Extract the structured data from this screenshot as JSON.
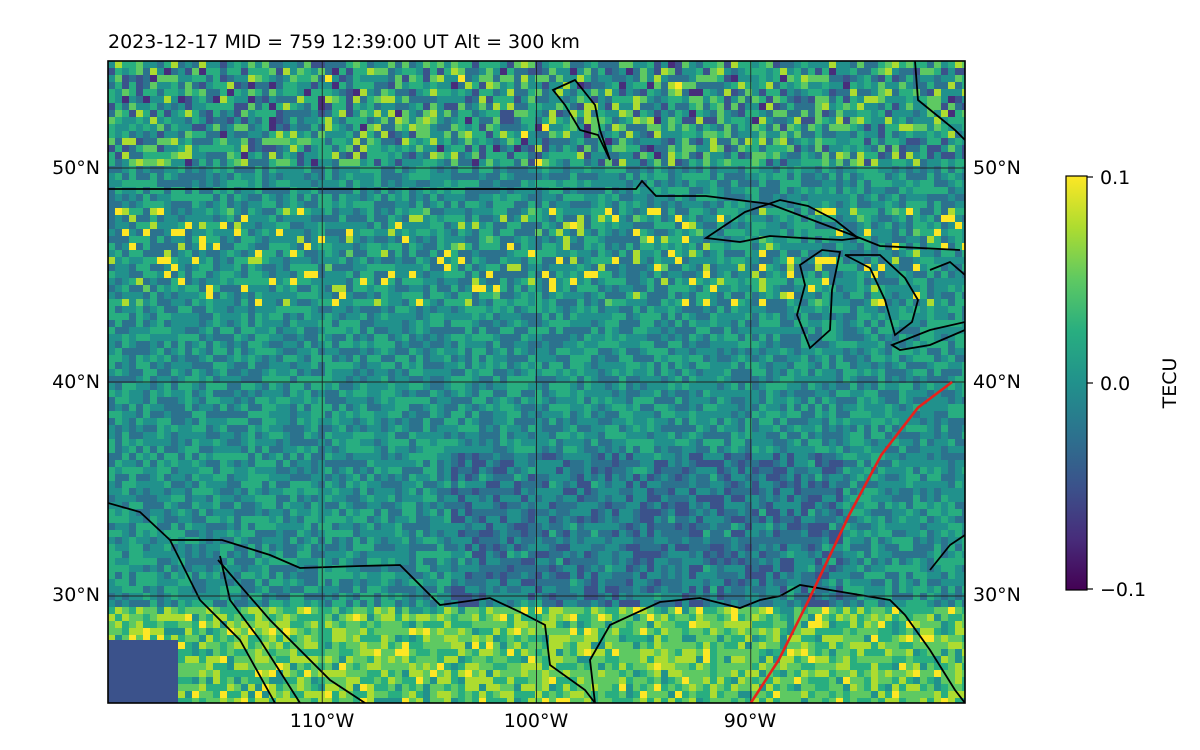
{
  "title": "2023-12-17  MID = 759    12:39:00  UT  Alt = 300 km",
  "map": {
    "lon_range": [
      -120,
      -80
    ],
    "lat_range": [
      25,
      55
    ],
    "lat_gridlines": [
      30,
      40,
      50
    ],
    "lon_gridlines": [
      -110,
      -100,
      -90
    ],
    "lat_tick_labels": [
      "30°N",
      "40°N",
      "50°N"
    ],
    "lon_tick_labels": [
      "110°W",
      "100°W",
      "90°W"
    ],
    "track_color": "#e8211b",
    "track": [
      {
        "lon": -90.0,
        "lat": 25.0
      },
      {
        "lon": -88.7,
        "lat": 27.0
      },
      {
        "lon": -87.3,
        "lat": 29.8
      },
      {
        "lon": -85.4,
        "lat": 33.8
      },
      {
        "lon": -83.9,
        "lat": 36.6
      },
      {
        "lon": -82.2,
        "lat": 38.8
      },
      {
        "lon": -80.6,
        "lat": 40.0
      }
    ]
  },
  "colorbar": {
    "label": "TECU",
    "colormap": "viridis",
    "ticks": [
      "0.1",
      "0.0",
      "−0.1"
    ],
    "vmin": -0.1,
    "vmax": 0.1
  }
}
